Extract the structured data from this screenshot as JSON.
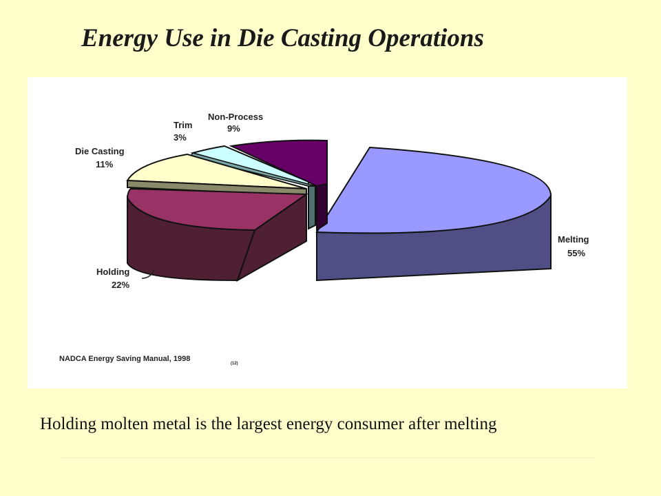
{
  "slide": {
    "title": "Energy Use in Die Casting Operations",
    "caption": "Holding molten metal is the largest energy consumer after melting"
  },
  "chart_data": {
    "type": "pie",
    "title": "",
    "slices": [
      {
        "name": "Melting",
        "label": "55%",
        "value": 55,
        "color": "#9999ff",
        "side_color": "#4f4f86"
      },
      {
        "name": "Holding",
        "label": "22%",
        "value": 22,
        "color": "#993366",
        "side_color": "#4f1f33"
      },
      {
        "name": "",
        "label": "",
        "value": 1,
        "color": "#8a8a6a",
        "side_color": "#5f5f45"
      },
      {
        "name": "Die Casting",
        "label": "11%",
        "value": 11,
        "color": "#ffffcc",
        "side_color": "#cfcf99"
      },
      {
        "name": "",
        "label": "",
        "value": 1,
        "color": "#7aa6a6",
        "side_color": "#4e7070"
      },
      {
        "name": "Trim",
        "label": "3%",
        "value": 3,
        "color": "#ccffff",
        "side_color": "#99cccc"
      },
      {
        "name": "Non-Process",
        "label": "9%",
        "value": 9,
        "color": "#660066",
        "side_color": "#330033"
      }
    ],
    "source": "NADCA Energy Saving Manual, 1998",
    "source_ref": "(12)"
  }
}
